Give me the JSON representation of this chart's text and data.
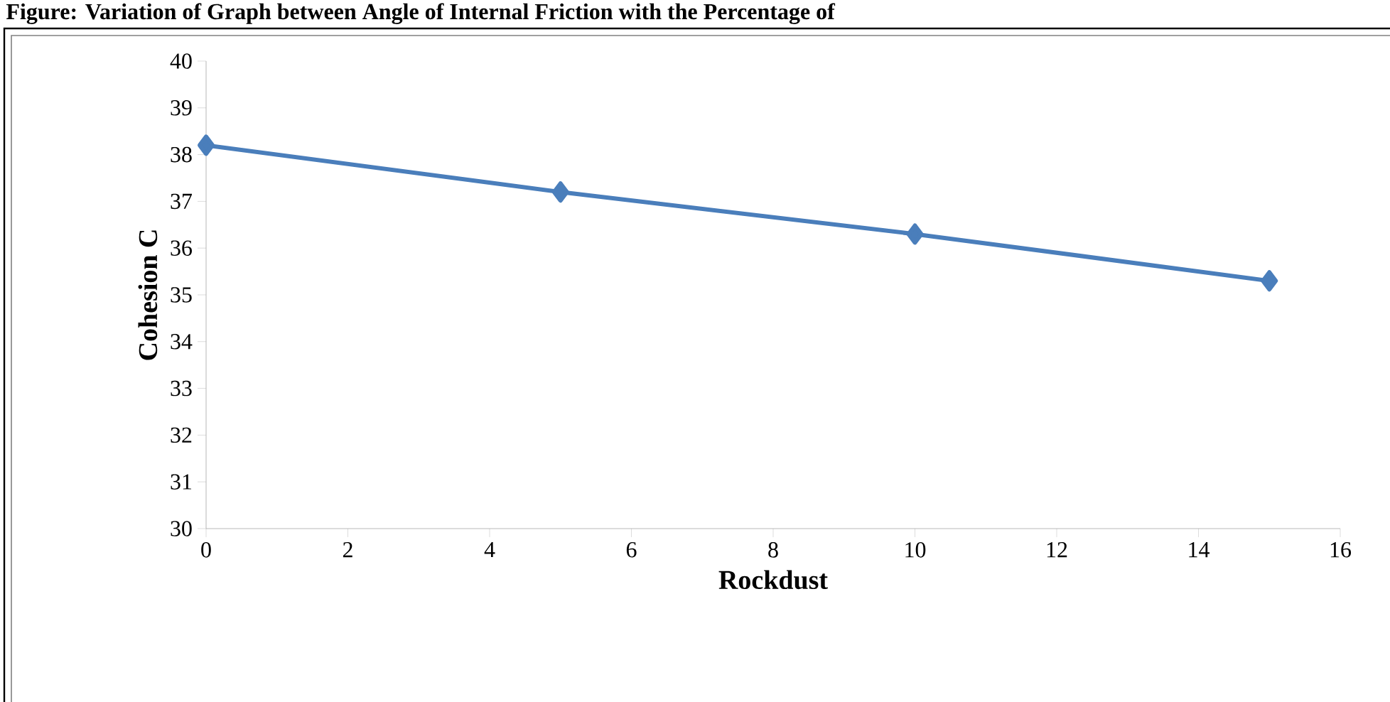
{
  "chart_data": {
    "type": "line",
    "title": "Figure: Variation of Graph between Angle of Internal Friction with the Percentage of",
    "xlabel": "Rockdust",
    "ylabel": "Cohesion C",
    "x": [
      0,
      5,
      10,
      15
    ],
    "series": [
      {
        "color": "#4a7ebb",
        "values": [
          38.2,
          37.2,
          36.3,
          35.3
        ]
      }
    ],
    "xlim": [
      0,
      16
    ],
    "xticks": [
      0,
      2,
      4,
      6,
      8,
      10,
      12,
      14,
      16
    ],
    "ylim": [
      30,
      40
    ],
    "yticks": [
      30,
      31,
      32,
      33,
      34,
      35,
      36,
      37,
      38,
      39,
      40
    ],
    "grid": false,
    "marker": "diamond",
    "line_style": "solid"
  }
}
